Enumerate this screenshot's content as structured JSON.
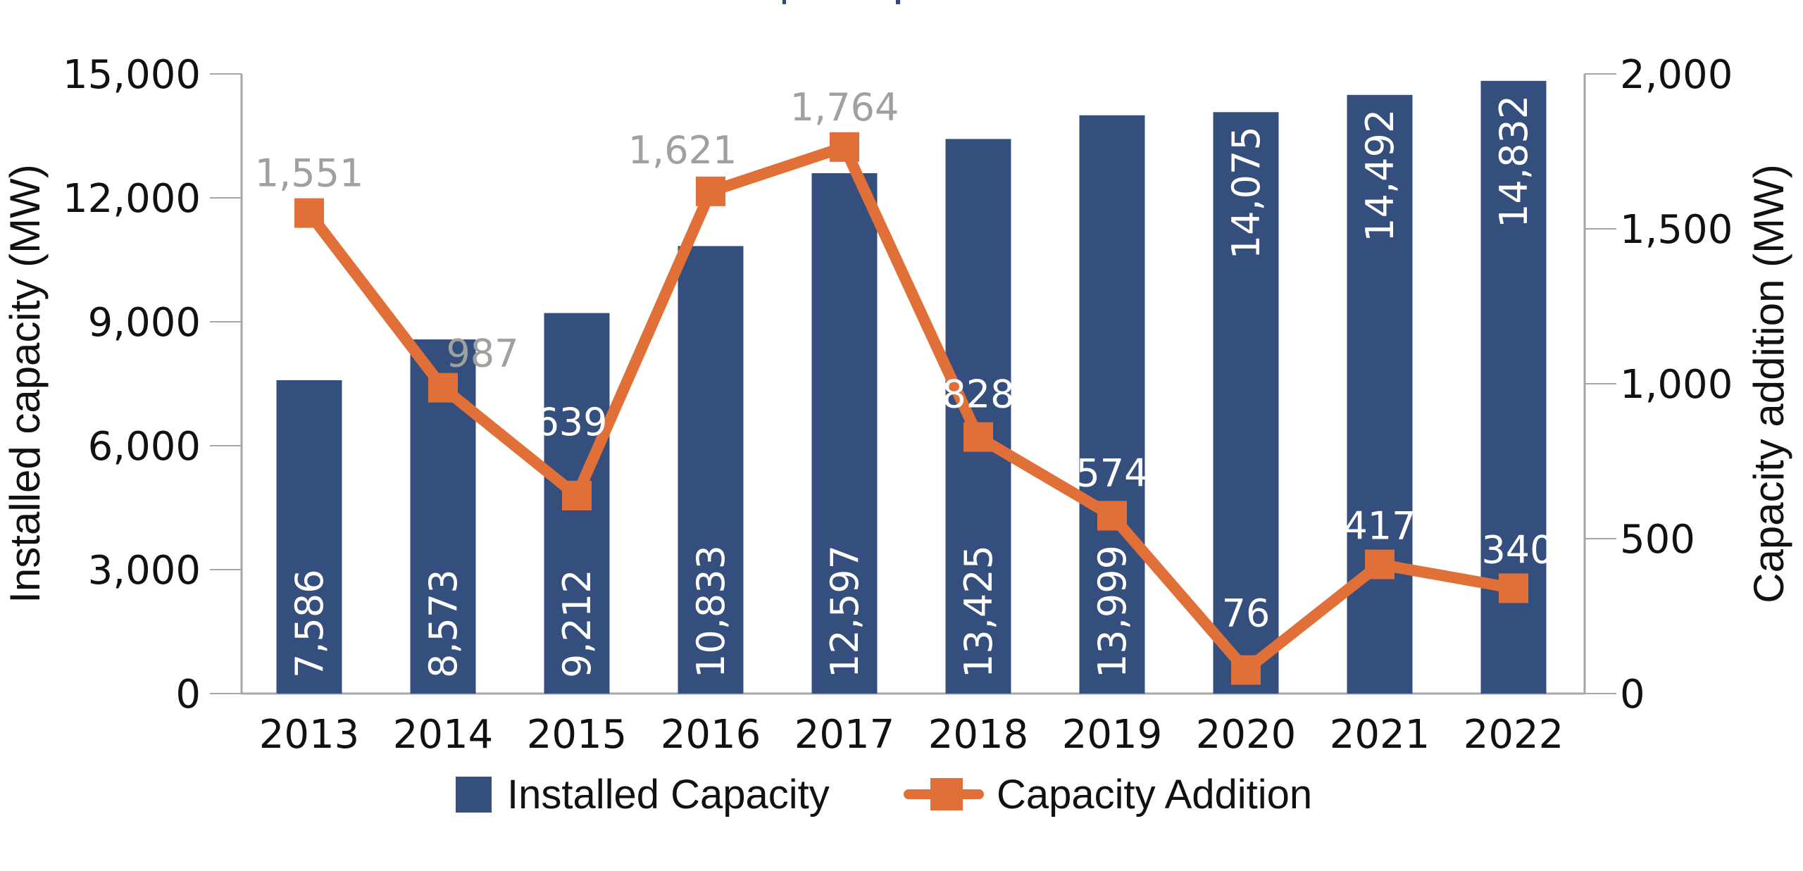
{
  "chart_data": {
    "type": "bar",
    "title": "",
    "categories": [
      "2013",
      "2014",
      "2015",
      "2016",
      "2017",
      "2018",
      "2019",
      "2020",
      "2021",
      "2022"
    ],
    "series": [
      {
        "name": "Installed Capacity",
        "type": "bar",
        "axis": "left",
        "color": "#344E7E",
        "values": [
          7586,
          8573,
          9212,
          10833,
          12597,
          13425,
          13999,
          14075,
          14492,
          14832
        ],
        "labels": [
          "7,586",
          "8,573",
          "9,212",
          "10,833",
          "12,597",
          "13,425",
          "13,999",
          "14,075",
          "14,492",
          "14,832"
        ]
      },
      {
        "name": "Capacity Addition",
        "type": "line",
        "axis": "right",
        "color": "#E07038",
        "marker": "square",
        "values": [
          1551,
          987,
          639,
          1621,
          1764,
          828,
          574,
          76,
          417,
          340
        ],
        "labels": [
          "1,551",
          "987",
          "639",
          "1,621",
          "1,764",
          "828",
          "574",
          "76",
          "417",
          "340"
        ]
      }
    ],
    "ylabel": "Installed capacity (MW)",
    "y2label": "Capacity addition (MW)",
    "xlabel": "",
    "ylim": [
      0,
      15000
    ],
    "y2lim": [
      0,
      2000
    ],
    "yticks": [
      0,
      3000,
      6000,
      9000,
      12000,
      15000
    ],
    "ytick_labels": [
      "0",
      "3,000",
      "6,000",
      "9,000",
      "12,000",
      "15,000"
    ],
    "y2ticks": [
      0,
      500,
      1000,
      1500,
      2000
    ],
    "y2tick_labels": [
      "0",
      "500",
      "1,000",
      "1,500",
      "2,000"
    ],
    "grid": false,
    "legend": {
      "position": "bottom",
      "entries": [
        "Installed Capacity",
        "Capacity Addition"
      ]
    },
    "colors": {
      "axis": "#A6A6A6",
      "label_outside": "#A0A0A0",
      "label_inside": "#FFFFFF",
      "title": "#2E4A7E"
    }
  }
}
